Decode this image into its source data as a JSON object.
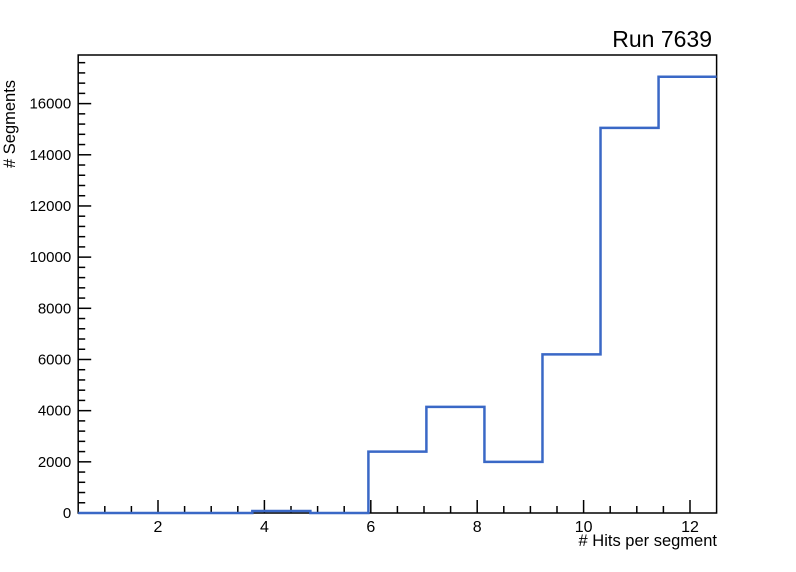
{
  "chart_data": {
    "type": "step-histogram",
    "title": "Run 7639",
    "xlabel": "# Hits per segment",
    "ylabel": "# Segments",
    "xlim": [
      0.5,
      12.5
    ],
    "ylim": [
      0,
      17900
    ],
    "bin_edges": [
      0.5,
      1.591,
      2.682,
      3.773,
      4.864,
      5.955,
      7.045,
      8.136,
      9.227,
      10.318,
      11.409,
      12.5
    ],
    "values": [
      0,
      0,
      0,
      80,
      0,
      2400,
      4150,
      2000,
      6200,
      15050,
      17050
    ],
    "x_major_ticks": [
      2,
      4,
      6,
      8,
      10,
      12
    ],
    "x_minor_step": 0.5,
    "y_major_ticks": [
      0,
      2000,
      4000,
      6000,
      8000,
      10000,
      12000,
      14000,
      16000
    ],
    "y_minor_step": 400,
    "grid": false,
    "line_color": "#3a68c6",
    "frame_color": "#000000",
    "background": "#ffffff",
    "tick_label_color": "#000000"
  }
}
